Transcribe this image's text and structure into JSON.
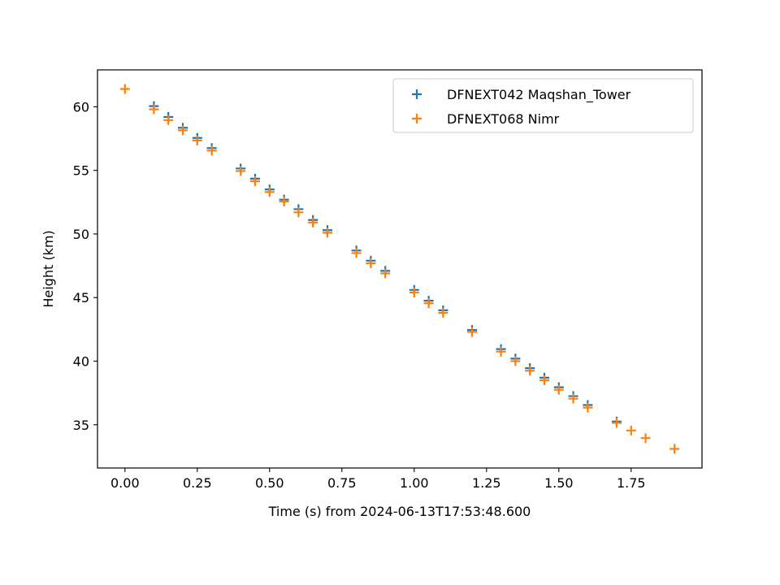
{
  "chart_data": {
    "type": "scatter",
    "title": "",
    "xlabel": "Time (s) from 2024-06-13T17:53:48.600",
    "ylabel": "Height (km)",
    "xlim": [
      -0.095,
      1.995
    ],
    "ylim": [
      31.6,
      62.9
    ],
    "xticks": [
      0.0,
      0.25,
      0.5,
      0.75,
      1.0,
      1.25,
      1.5,
      1.75
    ],
    "xtick_labels": [
      "0.00",
      "0.25",
      "0.50",
      "0.75",
      "1.00",
      "1.25",
      "1.50",
      "1.75"
    ],
    "yticks": [
      35,
      40,
      45,
      50,
      55,
      60
    ],
    "ytick_labels": [
      "35",
      "40",
      "45",
      "50",
      "55",
      "60"
    ],
    "grid": false,
    "legend_position": "top-right",
    "marker": "plus",
    "series": [
      {
        "name": "DFNEXT042 Maqshan_Tower",
        "color": "#1f77b4",
        "x": [
          0.1,
          0.15,
          0.2,
          0.25,
          0.3,
          0.4,
          0.45,
          0.5,
          0.55,
          0.6,
          0.65,
          0.7,
          0.8,
          0.85,
          0.9,
          1.0,
          1.05,
          1.1,
          1.2,
          1.3,
          1.35,
          1.4,
          1.45,
          1.5,
          1.55,
          1.6,
          1.7
        ],
        "y": [
          60.05,
          59.2,
          58.35,
          57.55,
          56.75,
          55.15,
          54.35,
          53.5,
          52.7,
          51.95,
          51.1,
          50.3,
          48.7,
          47.9,
          47.1,
          45.6,
          44.75,
          44.0,
          42.45,
          40.95,
          40.2,
          39.45,
          38.7,
          37.95,
          37.25,
          36.55,
          35.25
        ]
      },
      {
        "name": "DFNEXT068 Nimr",
        "color": "#ff7f0e",
        "x": [
          0.0,
          0.1,
          0.15,
          0.2,
          0.25,
          0.3,
          0.4,
          0.45,
          0.5,
          0.55,
          0.6,
          0.65,
          0.7,
          0.8,
          0.85,
          0.9,
          1.0,
          1.05,
          1.1,
          1.2,
          1.3,
          1.35,
          1.4,
          1.45,
          1.5,
          1.55,
          1.6,
          1.7,
          1.75,
          1.8,
          1.9
        ],
        "y": [
          61.4,
          59.8,
          58.95,
          58.15,
          57.35,
          56.55,
          54.95,
          54.15,
          53.3,
          52.55,
          51.7,
          50.9,
          50.1,
          48.5,
          47.7,
          46.9,
          45.4,
          44.55,
          43.8,
          42.3,
          40.75,
          40.0,
          39.25,
          38.5,
          37.75,
          37.05,
          36.35,
          35.15,
          34.55,
          33.95,
          33.1
        ]
      }
    ]
  }
}
